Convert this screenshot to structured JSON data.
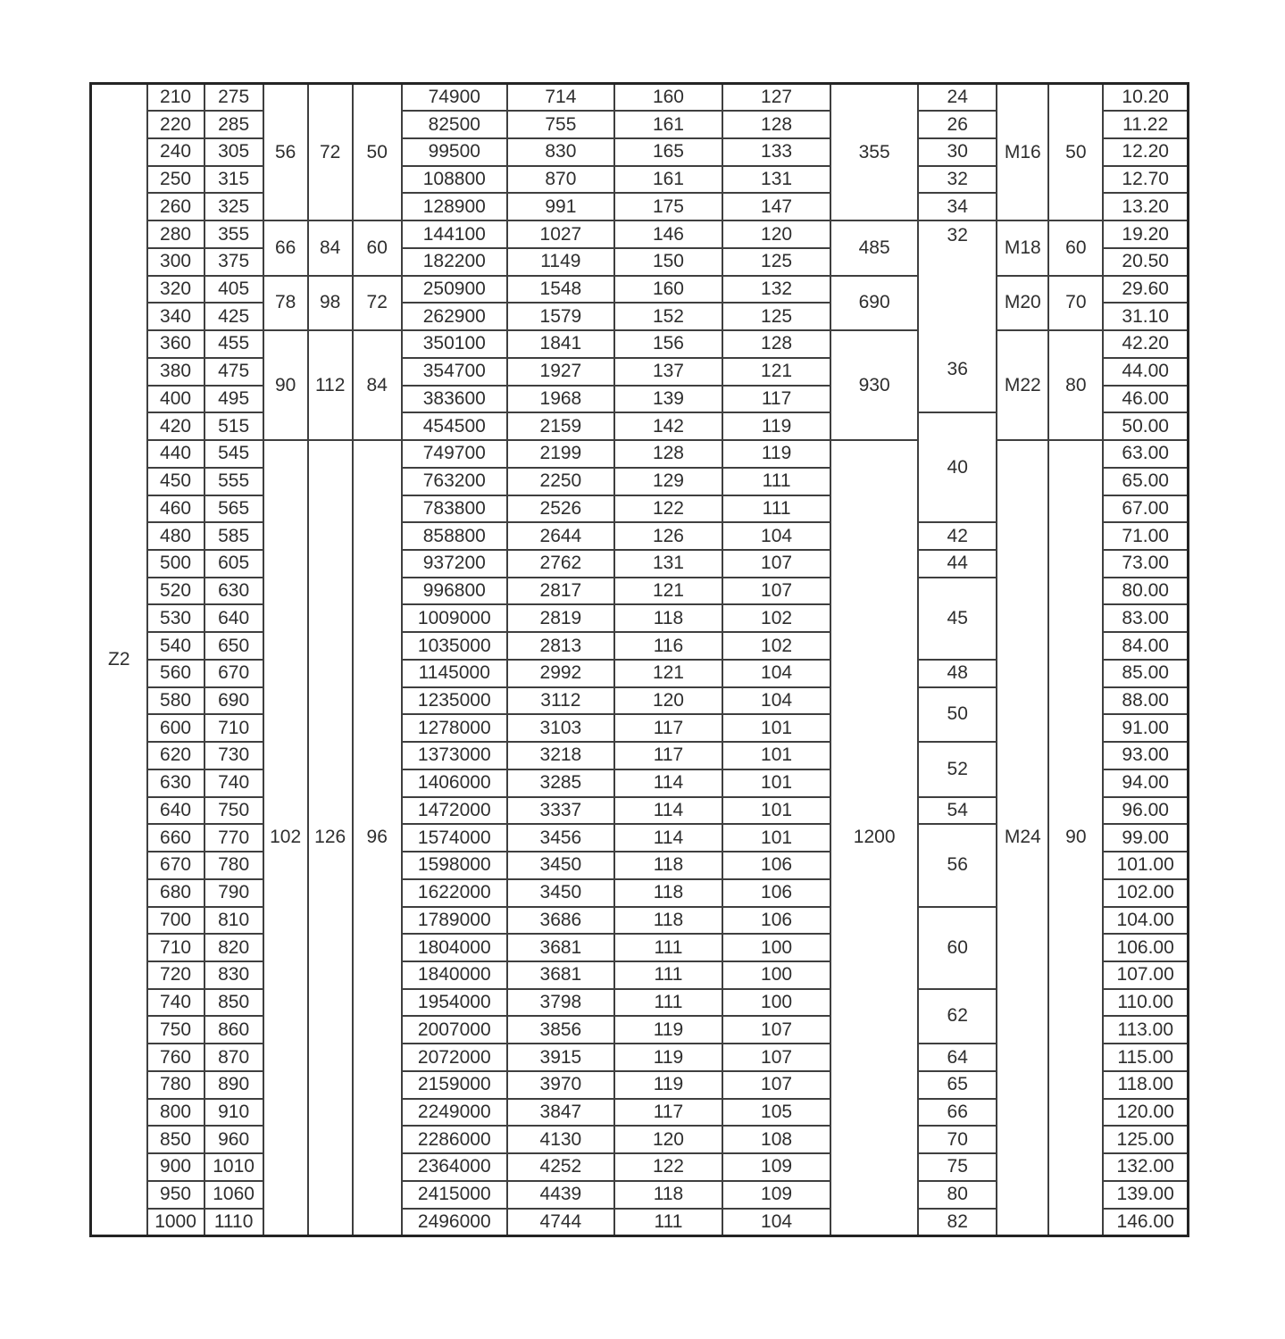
{
  "colors": {
    "background": "#ffffff",
    "text": "#2e2e2e",
    "grid": "#3f3f3f",
    "outer_border": "#242424"
  },
  "table": {
    "row_group_label": "Z2",
    "d1": [
      "210",
      "220",
      "240",
      "250",
      "260",
      "280",
      "300",
      "320",
      "340",
      "360",
      "380",
      "400",
      "420",
      "440",
      "450",
      "460",
      "480",
      "500",
      "520",
      "530",
      "540",
      "560",
      "580",
      "600",
      "620",
      "630",
      "640",
      "660",
      "670",
      "680",
      "700",
      "710",
      "720",
      "740",
      "750",
      "760",
      "780",
      "800",
      "850",
      "900",
      "950",
      "1000"
    ],
    "d2": [
      "275",
      "285",
      "305",
      "315",
      "325",
      "355",
      "375",
      "405",
      "425",
      "455",
      "475",
      "495",
      "515",
      "545",
      "555",
      "565",
      "585",
      "605",
      "630",
      "640",
      "650",
      "670",
      "690",
      "710",
      "730",
      "740",
      "750",
      "770",
      "780",
      "790",
      "810",
      "820",
      "830",
      "850",
      "860",
      "870",
      "890",
      "910",
      "960",
      "1010",
      "1060",
      "1110"
    ],
    "dims_groups": [
      {
        "start": 0,
        "span": 5,
        "a": "56",
        "b": "72",
        "c": "50",
        "col10": "355",
        "thread": "M16",
        "col13": "50"
      },
      {
        "start": 5,
        "span": 2,
        "a": "66",
        "b": "84",
        "c": "60",
        "col10": "485",
        "thread": "M18",
        "col13": "60"
      },
      {
        "start": 7,
        "span": 2,
        "a": "78",
        "b": "98",
        "c": "72",
        "col10": "690",
        "thread": "M20",
        "col13": "70"
      },
      {
        "start": 9,
        "span": 4,
        "a": "90",
        "b": "112",
        "c": "84",
        "col10": "930",
        "thread": "M22",
        "col13": "80"
      },
      {
        "start": 13,
        "span": 29,
        "a": "102",
        "b": "126",
        "c": "96",
        "col10": "1200",
        "thread": "M24",
        "col13": "90"
      }
    ],
    "col6": [
      "74900",
      "82500",
      "99500",
      "108800",
      "128900",
      "144100",
      "182200",
      "250900",
      "262900",
      "350100",
      "354700",
      "383600",
      "454500",
      "749700",
      "763200",
      "783800",
      "858800",
      "937200",
      "996800",
      "1009000",
      "1035000",
      "1145000",
      "1235000",
      "1278000",
      "1373000",
      "1406000",
      "1472000",
      "1574000",
      "1598000",
      "1622000",
      "1789000",
      "1804000",
      "1840000",
      "1954000",
      "2007000",
      "2072000",
      "2159000",
      "2249000",
      "2286000",
      "2364000",
      "2415000",
      "2496000"
    ],
    "col7": [
      "714",
      "755",
      "830",
      "870",
      "991",
      "1027",
      "1149",
      "1548",
      "1579",
      "1841",
      "1927",
      "1968",
      "2159",
      "2199",
      "2250",
      "2526",
      "2644",
      "2762",
      "2817",
      "2819",
      "2813",
      "2992",
      "3112",
      "3103",
      "3218",
      "3285",
      "3337",
      "3456",
      "3450",
      "3450",
      "3686",
      "3681",
      "3681",
      "3798",
      "3856",
      "3915",
      "3970",
      "3847",
      "4130",
      "4252",
      "4439",
      "4744"
    ],
    "col8": [
      "160",
      "161",
      "165",
      "161",
      "175",
      "146",
      "150",
      "160",
      "152",
      "156",
      "137",
      "139",
      "142",
      "128",
      "129",
      "122",
      "126",
      "131",
      "121",
      "118",
      "116",
      "121",
      "120",
      "117",
      "117",
      "114",
      "114",
      "114",
      "118",
      "118",
      "118",
      "111",
      "111",
      "111",
      "119",
      "119",
      "119",
      "117",
      "120",
      "122",
      "118",
      "111"
    ],
    "col9": [
      "127",
      "128",
      "133",
      "131",
      "147",
      "120",
      "125",
      "132",
      "125",
      "128",
      "121",
      "117",
      "119",
      "119",
      "111",
      "111",
      "104",
      "107",
      "107",
      "102",
      "102",
      "104",
      "104",
      "101",
      "101",
      "101",
      "101",
      "101",
      "106",
      "106",
      "106",
      "100",
      "100",
      "100",
      "107",
      "107",
      "107",
      "105",
      "108",
      "109",
      "109",
      "104"
    ],
    "bolt_cells": [
      {
        "start": 0,
        "span": 1,
        "v": "24"
      },
      {
        "start": 1,
        "span": 1,
        "v": "26"
      },
      {
        "start": 2,
        "span": 1,
        "v": "30"
      },
      {
        "start": 3,
        "span": 1,
        "v": "32"
      },
      {
        "start": 4,
        "span": 1,
        "v": "34"
      },
      {
        "start": 5,
        "span": 7,
        "v": "32",
        "v2": "36"
      },
      {
        "start": 12,
        "span": 4,
        "v": "40"
      },
      {
        "start": 16,
        "span": 1,
        "v": "42"
      },
      {
        "start": 17,
        "span": 1,
        "v": "44"
      },
      {
        "start": 18,
        "span": 3,
        "v": "45"
      },
      {
        "start": 21,
        "span": 1,
        "v": "48"
      },
      {
        "start": 22,
        "span": 2,
        "v": "50"
      },
      {
        "start": 24,
        "span": 2,
        "v": "52"
      },
      {
        "start": 26,
        "span": 1,
        "v": "54"
      },
      {
        "start": 27,
        "span": 3,
        "v": "56"
      },
      {
        "start": 30,
        "span": 3,
        "v": "60"
      },
      {
        "start": 33,
        "span": 2,
        "v": "62"
      },
      {
        "start": 35,
        "span": 1,
        "v": "64"
      },
      {
        "start": 36,
        "span": 1,
        "v": "65"
      },
      {
        "start": 37,
        "span": 1,
        "v": "66"
      },
      {
        "start": 38,
        "span": 1,
        "v": "70"
      },
      {
        "start": 39,
        "span": 1,
        "v": "75"
      },
      {
        "start": 40,
        "span": 1,
        "v": "80"
      },
      {
        "start": 41,
        "span": 1,
        "v": "82"
      }
    ],
    "col14": [
      "10.20",
      "11.22",
      "12.20",
      "12.70",
      "13.20",
      "19.20",
      "20.50",
      "29.60",
      "31.10",
      "42.20",
      "44.00",
      "46.00",
      "50.00",
      "63.00",
      "65.00",
      "67.00",
      "71.00",
      "73.00",
      "80.00",
      "83.00",
      "84.00",
      "85.00",
      "88.00",
      "91.00",
      "93.00",
      "94.00",
      "96.00",
      "99.00",
      "101.00",
      "102.00",
      "104.00",
      "106.00",
      "107.00",
      "110.00",
      "113.00",
      "115.00",
      "118.00",
      "120.00",
      "125.00",
      "132.00",
      "139.00",
      "146.00"
    ]
  }
}
